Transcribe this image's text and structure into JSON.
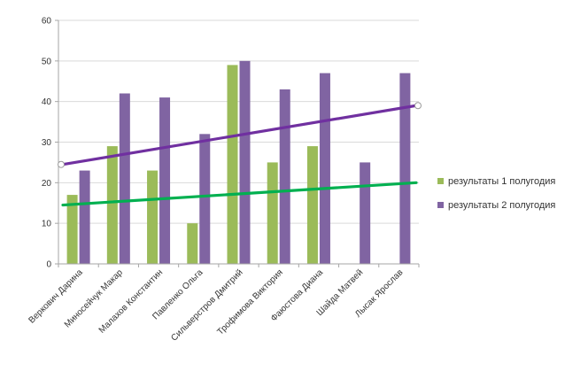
{
  "chart_data": {
    "type": "bar",
    "categories": [
      "Веркович Дарина",
      "Миносейчук Макар",
      "Малахов Константин",
      "Павленко Ольга",
      "Сильверстров Дмитрий",
      "Трофимова Виктория",
      "Фаюстова Диана",
      "Шайда Матвей",
      "Лысак Ярослав"
    ],
    "series": [
      {
        "name": "результаты 1 полугодия",
        "values": [
          17,
          29,
          23,
          10,
          49,
          25,
          29,
          null,
          null
        ],
        "color": "#9bbb59"
      },
      {
        "name": "результаты 2 полугодия",
        "values": [
          23,
          42,
          41,
          32,
          50,
          43,
          47,
          25,
          47
        ],
        "color": "#8064a2"
      }
    ],
    "trendlines": [
      {
        "series": "результаты 1 полугодия",
        "start": 14.5,
        "end": 20,
        "color": "#00b050"
      },
      {
        "series": "результаты 2 полугодия",
        "start": 24.5,
        "end": 39,
        "color": "#7030a0"
      }
    ],
    "ylim": [
      0,
      60
    ],
    "yticks": [
      0,
      10,
      20,
      30,
      40,
      50,
      60
    ],
    "grid": true,
    "legend": "right",
    "title": "",
    "xlabel": "",
    "ylabel": ""
  }
}
